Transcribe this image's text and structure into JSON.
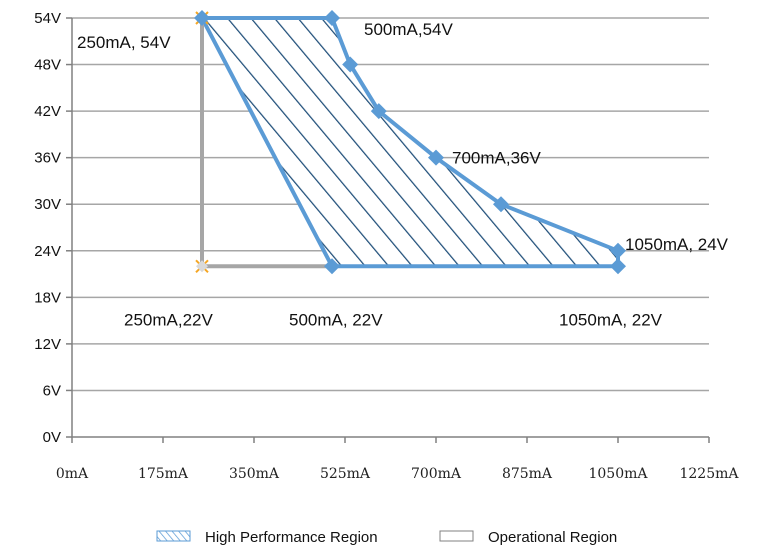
{
  "chart_data": {
    "type": "area",
    "x_unit": "mA",
    "y_unit": "V",
    "xlim": [
      0,
      1225
    ],
    "ylim": [
      0,
      54
    ],
    "x_ticks": [
      0,
      175,
      350,
      525,
      700,
      875,
      1050,
      1225
    ],
    "x_tick_labels": [
      "0mA",
      "175mA",
      "350mA",
      "525mA",
      "700mA",
      "875mA",
      "1050mA",
      "1225mA"
    ],
    "y_ticks": [
      0,
      6,
      12,
      18,
      24,
      30,
      36,
      42,
      48,
      54
    ],
    "y_tick_labels": [
      "0V",
      "6V",
      "12V",
      "18V",
      "24V",
      "30V",
      "36V",
      "42V",
      "48V",
      "54V"
    ],
    "grid": "horizontal",
    "legend_position": "bottom",
    "series": [
      {
        "name": "High Performance Region",
        "style": "hatched",
        "color": "#5b9bd5",
        "hatch_color": "#1f4e79",
        "points": [
          [
            250,
            54
          ],
          [
            500,
            54
          ],
          [
            535,
            48
          ],
          [
            590,
            42
          ],
          [
            700,
            36
          ],
          [
            825,
            30
          ],
          [
            1050,
            24
          ],
          [
            1050,
            22
          ],
          [
            500,
            22
          ]
        ]
      },
      {
        "name": "Operational Region",
        "style": "outline",
        "color": "#a6a6a6",
        "points": [
          [
            250,
            54
          ],
          [
            250,
            22
          ],
          [
            500,
            22
          ]
        ]
      }
    ],
    "annotations": [
      {
        "text": "250mA, 54V",
        "x": 250,
        "y": 54
      },
      {
        "text": "500mA,54V",
        "x": 500,
        "y": 54
      },
      {
        "text": "700mA,36V",
        "x": 700,
        "y": 36
      },
      {
        "text": "1050mA, 24V",
        "x": 1050,
        "y": 24
      },
      {
        "text": "250mA,22V",
        "x": 250,
        "y": 22
      },
      {
        "text": "500mA, 22V",
        "x": 500,
        "y": 22
      },
      {
        "text": "1050mA, 22V",
        "x": 1050,
        "y": 22
      }
    ],
    "marker_colors": {
      "orange": "#f5a623",
      "blue": "#5b9bd5"
    }
  }
}
